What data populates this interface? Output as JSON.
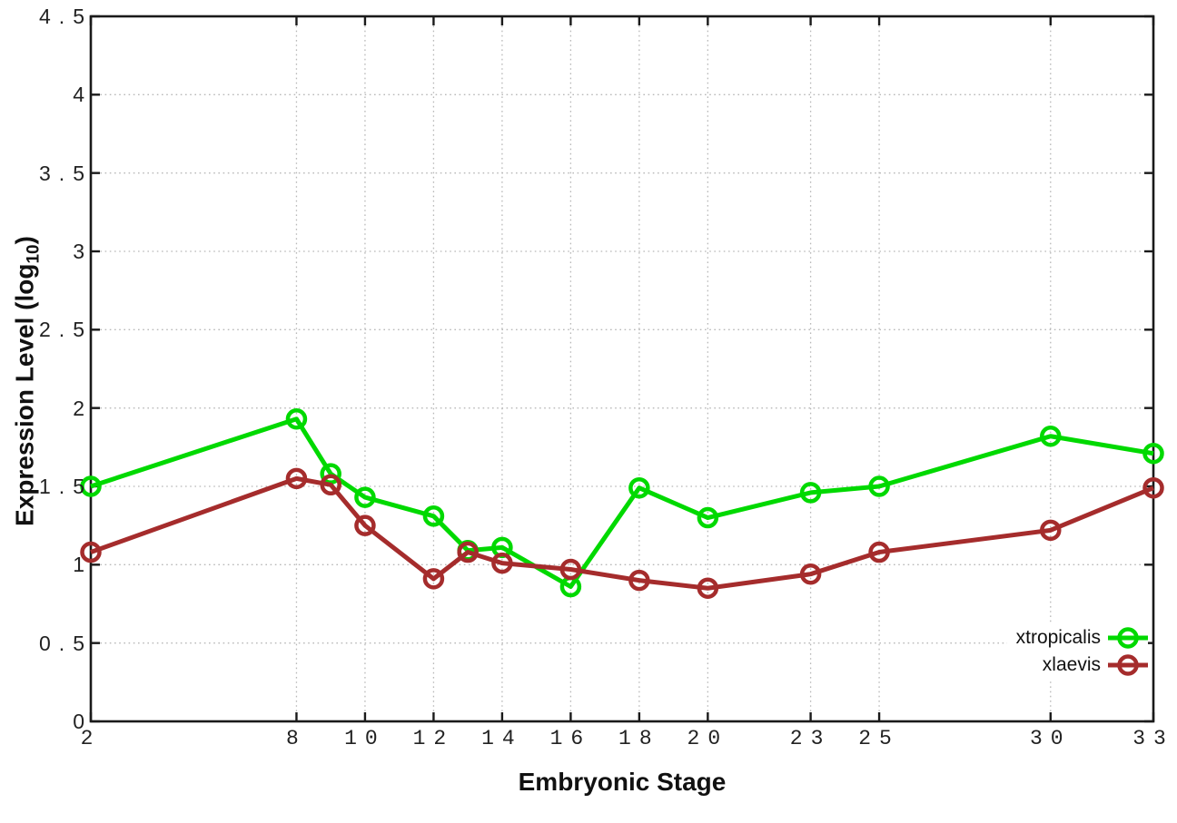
{
  "figure": {
    "background": "#ffffff",
    "border_color": "#1a1a1a",
    "grid_color": "#b8b8b8",
    "tick_text_color": "#222222"
  },
  "chart_data": {
    "type": "line",
    "title": "",
    "xlabel": "Embryonic Stage",
    "ylabel": "Expression Level (log10)",
    "ylabel_pre": "Expression Level (log",
    "ylabel_sub": "10",
    "ylabel_post": ")",
    "xlim": [
      2,
      33
    ],
    "ylim": [
      0,
      4.5
    ],
    "grid": true,
    "legend_position": "bottom-right",
    "x_ticks": [
      2,
      8,
      10,
      12,
      14,
      16,
      18,
      20,
      23,
      25,
      30,
      33
    ],
    "x_tick_labels": [
      "2",
      "8",
      "10",
      "12",
      "14",
      "16",
      "18",
      "20",
      "23",
      "25",
      "30",
      "33"
    ],
    "y_ticks": [
      0,
      0.5,
      1,
      1.5,
      2,
      2.5,
      3,
      3.5,
      4,
      4.5
    ],
    "y_tick_labels": [
      "0",
      "0.5",
      "1",
      "1.5",
      "2",
      "2.5",
      "3",
      "3.5",
      "4",
      "4.5"
    ],
    "x": [
      2,
      8,
      9,
      10,
      12,
      13,
      14,
      16,
      18,
      20,
      23,
      25,
      30,
      33
    ],
    "series": [
      {
        "name": "xtropicalis",
        "color": "#00d900",
        "values": [
          1.5,
          1.93,
          1.58,
          1.43,
          1.31,
          1.09,
          1.11,
          0.86,
          1.49,
          1.3,
          1.46,
          1.5,
          1.82,
          1.71
        ]
      },
      {
        "name": "xlaevis",
        "color": "#a52c2c",
        "values": [
          1.08,
          1.55,
          1.51,
          1.25,
          0.91,
          1.08,
          1.01,
          0.97,
          0.9,
          0.85,
          0.94,
          1.08,
          1.22,
          1.49
        ]
      }
    ]
  }
}
